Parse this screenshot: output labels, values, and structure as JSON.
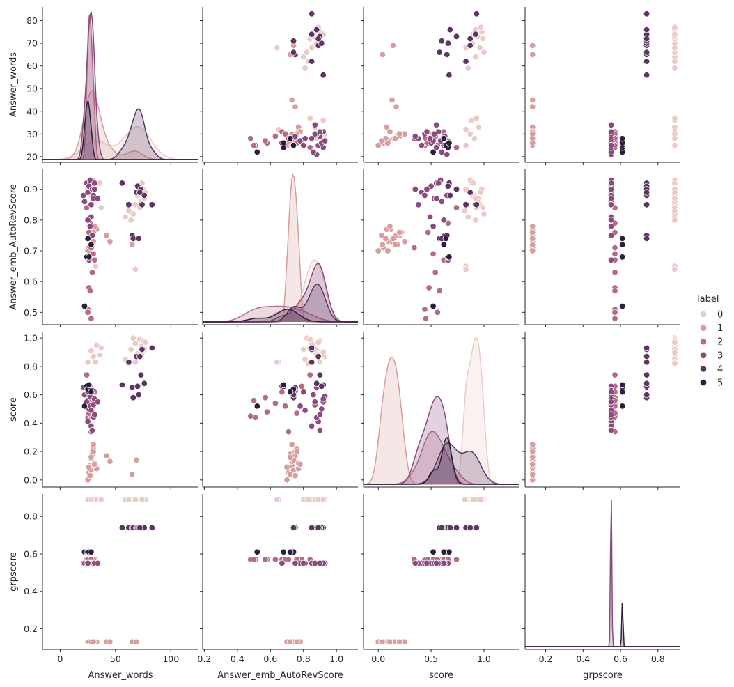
{
  "chart_data": {
    "type": "scatter",
    "title": "",
    "variables": [
      "Answer_words",
      "Answer_emb_AutoRevScore",
      "score",
      "grpscore"
    ],
    "axis_labels": [
      "Answer_words",
      "Answer_emb_AutoRevScore",
      "score",
      "grpscore"
    ],
    "ticks": {
      "Answer_words_y": [
        20,
        30,
        40,
        50,
        60,
        70,
        80
      ],
      "Answer_emb_AutoRevScore_y": [
        0.5,
        0.6,
        0.7,
        0.8,
        0.9
      ],
      "score_y": [
        0.0,
        0.2,
        0.4,
        0.6,
        0.8,
        1.0
      ],
      "grpscore_y": [
        0.2,
        0.4,
        0.6,
        0.8
      ],
      "Answer_words_x": [
        "0",
        "50",
        "100"
      ],
      "Answer_emb_AutoRevScore_x": [
        "0.2",
        "0.4",
        "0.6",
        "0.8",
        "1.0"
      ],
      "score_x": [
        "0.0",
        "0.5",
        "1.0"
      ],
      "grpscore_x": [
        "0.2",
        "0.4",
        "0.6",
        "0.8"
      ]
    },
    "diag_kind": "kde",
    "legend": {
      "title": "label",
      "entries": [
        "0",
        "1",
        "2",
        "3",
        "4",
        "5"
      ],
      "placement": "right"
    },
    "palette": [
      "#ebcbc6",
      "#d69e9d",
      "#b26c86",
      "#8b4b7e",
      "#5c3561",
      "#2d1e3e"
    ],
    "series": [
      {
        "name": "0",
        "grpscore": 0.89,
        "points": [
          [
            25,
            0.9,
            0.83
          ],
          [
            28,
            0.88,
            0.91
          ],
          [
            30,
            0.93,
            0.87
          ],
          [
            32,
            0.65,
            0.83
          ],
          [
            33,
            0.87,
            0.95
          ],
          [
            36,
            0.92,
            0.88
          ],
          [
            37,
            0.84,
            0.93
          ],
          [
            59,
            0.81,
            0.85
          ],
          [
            64,
            0.8,
            0.92
          ],
          [
            66,
            0.82,
            1.0
          ],
          [
            68,
            0.85,
            0.96
          ],
          [
            70,
            0.88,
            0.89
          ],
          [
            72,
            0.84,
            0.99
          ],
          [
            73,
            0.86,
            0.94
          ],
          [
            75,
            0.9,
            0.98
          ],
          [
            76,
            0.87,
            0.92
          ],
          [
            77,
            0.89,
            0.97
          ],
          [
            68,
            0.64,
            0.83
          ],
          [
            62,
            0.83,
            0.82
          ],
          [
            74,
            0.92,
            0.9
          ]
        ]
      },
      {
        "name": "1",
        "grpscore": 0.13,
        "points": [
          [
            25,
            0.7,
            0.0
          ],
          [
            26,
            0.71,
            0.05
          ],
          [
            27,
            0.73,
            0.1
          ],
          [
            28,
            0.74,
            0.15
          ],
          [
            29,
            0.75,
            0.2
          ],
          [
            30,
            0.76,
            0.22
          ],
          [
            31,
            0.77,
            0.12
          ],
          [
            29,
            0.72,
            0.18
          ],
          [
            28,
            0.74,
            0.07
          ],
          [
            27,
            0.75,
            0.03
          ],
          [
            30,
            0.73,
            0.25
          ],
          [
            33,
            0.77,
            0.08
          ],
          [
            42,
            0.75,
            0.17
          ],
          [
            45,
            0.73,
            0.13
          ],
          [
            65,
            0.72,
            0.04
          ],
          [
            69,
            0.74,
            0.14
          ],
          [
            26,
            0.7,
            0.09
          ],
          [
            31,
            0.78,
            0.11
          ],
          [
            28,
            0.72,
            0.16
          ],
          [
            30,
            0.76,
            0.2
          ]
        ]
      },
      {
        "name": "2",
        "grpscore": 0.57,
        "points": [
          [
            25,
            0.51,
            0.44
          ],
          [
            26,
            0.58,
            0.48
          ],
          [
            27,
            0.57,
            0.58
          ],
          [
            28,
            0.48,
            0.45
          ],
          [
            29,
            0.63,
            0.54
          ],
          [
            31,
            0.67,
            0.62
          ],
          [
            30,
            0.69,
            0.52
          ],
          [
            24,
            0.84,
            0.74
          ],
          [
            27,
            0.79,
            0.66
          ],
          [
            26,
            0.76,
            0.47
          ],
          [
            25,
            0.5,
            0.56
          ],
          [
            28,
            0.71,
            0.34
          ]
        ]
      },
      {
        "name": "3",
        "grpscore": 0.55,
        "points": [
          [
            21,
            0.88,
            0.65
          ],
          [
            22,
            0.86,
            0.6
          ],
          [
            24,
            0.92,
            0.55
          ],
          [
            25,
            0.89,
            0.41
          ],
          [
            26,
            0.91,
            0.5
          ],
          [
            27,
            0.93,
            0.59
          ],
          [
            28,
            0.85,
            0.38
          ],
          [
            29,
            0.9,
            0.35
          ],
          [
            30,
            0.88,
            0.44
          ],
          [
            31,
            0.92,
            0.57
          ],
          [
            26,
            0.67,
            0.66
          ],
          [
            27,
            0.78,
            0.52
          ],
          [
            28,
            0.81,
            0.49
          ],
          [
            29,
            0.75,
            0.63
          ],
          [
            30,
            0.87,
            0.53
          ],
          [
            31,
            0.9,
            0.46
          ],
          [
            34,
            0.87,
            0.55
          ],
          [
            25,
            0.8,
            0.62
          ]
        ]
      },
      {
        "name": "4",
        "grpscore": 0.74,
        "points": [
          [
            56,
            0.92,
            0.67
          ],
          [
            62,
            0.85,
            0.83
          ],
          [
            65,
            0.75,
            0.65
          ],
          [
            66,
            0.74,
            0.58
          ],
          [
            69,
            0.89,
            0.87
          ],
          [
            70,
            0.91,
            0.66
          ],
          [
            73,
            0.9,
            0.74
          ],
          [
            74,
            0.85,
            0.92
          ],
          [
            76,
            0.88,
            0.68
          ],
          [
            83,
            0.85,
            0.93
          ],
          [
            71,
            0.74,
            0.6
          ],
          [
            72,
            0.89,
            0.87
          ]
        ]
      },
      {
        "name": "5",
        "grpscore": 0.61,
        "points": [
          [
            22,
            0.52,
            0.52
          ],
          [
            24,
            0.68,
            0.66
          ],
          [
            25,
            0.74,
            0.64
          ],
          [
            26,
            0.68,
            0.67
          ],
          [
            28,
            0.72,
            0.62
          ]
        ]
      }
    ]
  }
}
